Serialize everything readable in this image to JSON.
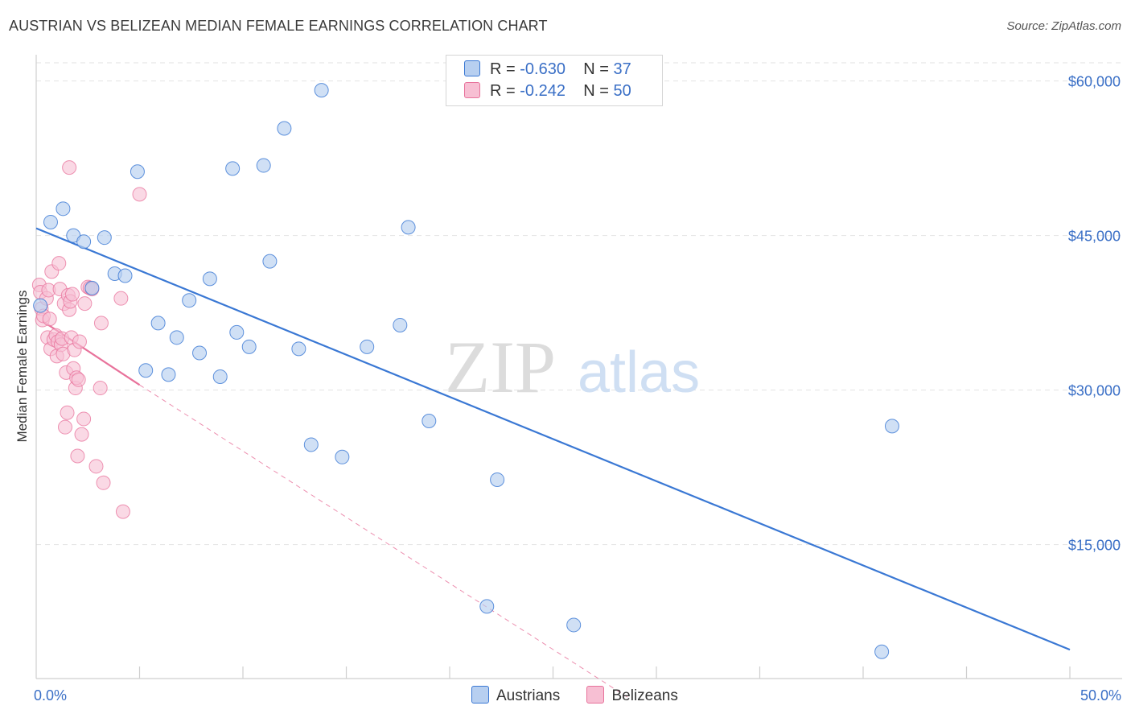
{
  "header": {
    "title": "AUSTRIAN VS BELIZEAN MEDIAN FEMALE EARNINGS CORRELATION CHART",
    "source": "Source: ZipAtlas.com"
  },
  "watermark": {
    "zip": "ZIP",
    "atlas": "atlas"
  },
  "legend": {
    "austrians": {
      "r_label": "R =",
      "r_value": "-0.630",
      "n_label": "N =",
      "n_value": "37"
    },
    "belizeans": {
      "r_label": "R =",
      "r_value": "-0.242",
      "n_label": "N =",
      "n_value": "50"
    }
  },
  "bottom_legend": {
    "austrians": "Austrians",
    "belizeans": "Belizeans"
  },
  "chart_data": {
    "type": "scatter",
    "title": "AUSTRIAN VS BELIZEAN MEDIAN FEMALE EARNINGS CORRELATION CHART",
    "xlabel": "",
    "ylabel": "Median Female Earnings",
    "xlim": [
      0,
      50
    ],
    "ylim": [
      2000,
      62000
    ],
    "x_tick_labels": [
      "0.0%",
      "50.0%"
    ],
    "y_ticks": [
      15000,
      30000,
      45000,
      60000
    ],
    "y_tick_labels": [
      "$15,000",
      "$30,000",
      "$45,000",
      "$60,000"
    ],
    "grid": true,
    "colors": {
      "austrians": "#3a78d4",
      "belizeans": "#e8729b",
      "austrians_fill": "#b7cff0",
      "belizeans_fill": "#f7bfd3"
    },
    "series": [
      {
        "name": "Austrians",
        "r": -0.63,
        "n": 37,
        "trend": {
          "x": [
            0,
            50
          ],
          "y": [
            45700,
            4800
          ],
          "style": "solid"
        },
        "points": [
          [
            0.2,
            38200
          ],
          [
            0.7,
            46300
          ],
          [
            1.3,
            47600
          ],
          [
            1.8,
            45000
          ],
          [
            2.3,
            44400
          ],
          [
            2.7,
            39900
          ],
          [
            3.3,
            44800
          ],
          [
            3.8,
            41300
          ],
          [
            4.3,
            41100
          ],
          [
            4.9,
            51200
          ],
          [
            5.3,
            31900
          ],
          [
            5.9,
            36500
          ],
          [
            6.4,
            31500
          ],
          [
            6.8,
            35100
          ],
          [
            7.4,
            38700
          ],
          [
            7.9,
            33600
          ],
          [
            8.4,
            40800
          ],
          [
            8.9,
            31300
          ],
          [
            9.5,
            51500
          ],
          [
            9.7,
            35600
          ],
          [
            10.3,
            34200
          ],
          [
            11.0,
            51800
          ],
          [
            11.3,
            42500
          ],
          [
            12.0,
            55400
          ],
          [
            12.7,
            34000
          ],
          [
            13.3,
            24700
          ],
          [
            13.8,
            59100
          ],
          [
            14.8,
            23500
          ],
          [
            16.0,
            34200
          ],
          [
            17.6,
            36300
          ],
          [
            18.0,
            45800
          ],
          [
            19.0,
            27000
          ],
          [
            21.8,
            9000
          ],
          [
            22.3,
            21300
          ],
          [
            26.0,
            7200
          ],
          [
            40.9,
            4600
          ],
          [
            41.4,
            26500
          ]
        ]
      },
      {
        "name": "Belizeans",
        "r": -0.242,
        "n": 50,
        "trend": {
          "x": [
            0.3,
            5.0
          ],
          "y": [
            36700,
            30500
          ],
          "style": "solid",
          "dashed_extension": {
            "x": [
              5.0,
              28.6
            ],
            "y": [
              30500,
              200
            ]
          }
        },
        "points": [
          [
            0.15,
            40200
          ],
          [
            0.2,
            39500
          ],
          [
            0.25,
            37900
          ],
          [
            0.3,
            36800
          ],
          [
            0.35,
            37200
          ],
          [
            0.5,
            38900
          ],
          [
            0.55,
            35100
          ],
          [
            0.6,
            39700
          ],
          [
            0.65,
            36900
          ],
          [
            0.7,
            34000
          ],
          [
            0.75,
            41500
          ],
          [
            0.85,
            34900
          ],
          [
            0.95,
            35300
          ],
          [
            1.0,
            33300
          ],
          [
            1.05,
            34700
          ],
          [
            1.1,
            42300
          ],
          [
            1.15,
            39800
          ],
          [
            1.2,
            34400
          ],
          [
            1.25,
            35000
          ],
          [
            1.3,
            33500
          ],
          [
            1.35,
            38400
          ],
          [
            1.4,
            26400
          ],
          [
            1.45,
            31700
          ],
          [
            1.5,
            27800
          ],
          [
            1.55,
            39200
          ],
          [
            1.6,
            37800
          ],
          [
            1.65,
            38600
          ],
          [
            1.7,
            35100
          ],
          [
            1.75,
            39300
          ],
          [
            1.8,
            32100
          ],
          [
            1.6,
            51600
          ],
          [
            1.85,
            33900
          ],
          [
            1.9,
            30200
          ],
          [
            1.95,
            31200
          ],
          [
            2.0,
            23600
          ],
          [
            2.05,
            31000
          ],
          [
            2.1,
            34700
          ],
          [
            2.2,
            25700
          ],
          [
            2.3,
            27200
          ],
          [
            2.35,
            38400
          ],
          [
            2.5,
            40000
          ],
          [
            2.6,
            39900
          ],
          [
            2.9,
            22600
          ],
          [
            3.1,
            30200
          ],
          [
            3.15,
            36500
          ],
          [
            3.25,
            21000
          ],
          [
            4.1,
            38900
          ],
          [
            4.2,
            18200
          ],
          [
            5.0,
            49000
          ],
          [
            2.7,
            39800
          ]
        ]
      }
    ]
  }
}
